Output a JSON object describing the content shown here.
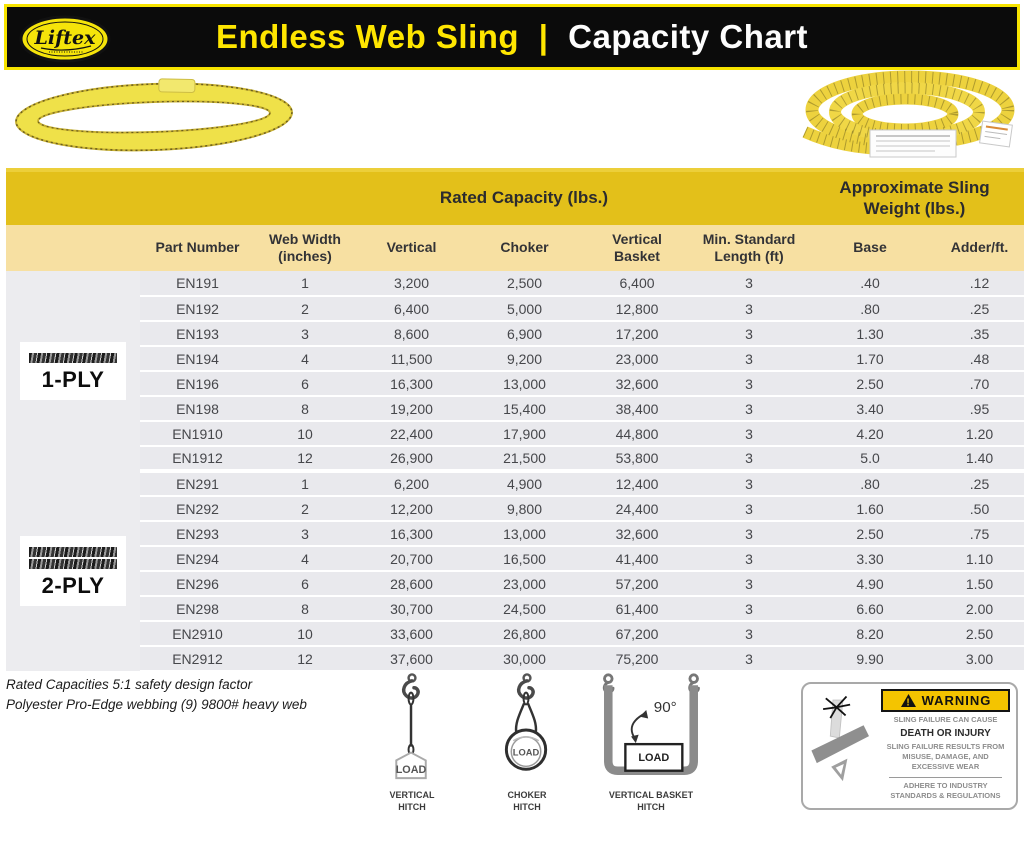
{
  "titlebar": {
    "brand": "Liftex",
    "title_product": "Endless Web Sling",
    "title_divider": "|",
    "title_page": "Capacity Chart"
  },
  "table": {
    "group_headers": {
      "rated_capacity": "Rated Capacity (lbs.)",
      "approx_sling_weight": "Approximate Sling\nWeight (lbs.)"
    },
    "columns": {
      "part_number": "Part Number",
      "web_width": "Web Width\n(inches)",
      "vertical": "Vertical",
      "choker": "Choker",
      "vertical_basket": "Vertical\nBasket",
      "min_standard_length": "Min. Standard\nLength (ft)",
      "base": "Base",
      "adder_per_ft": "Adder/ft."
    },
    "groups": [
      {
        "ply_label": "1-PLY",
        "plies": 1,
        "rows": [
          [
            "EN191",
            "1",
            "3,200",
            "2,500",
            "6,400",
            "3",
            ".40",
            ".12"
          ],
          [
            "EN192",
            "2",
            "6,400",
            "5,000",
            "12,800",
            "3",
            ".80",
            ".25"
          ],
          [
            "EN193",
            "3",
            "8,600",
            "6,900",
            "17,200",
            "3",
            "1.30",
            ".35"
          ],
          [
            "EN194",
            "4",
            "11,500",
            "9,200",
            "23,000",
            "3",
            "1.70",
            ".48"
          ],
          [
            "EN196",
            "6",
            "16,300",
            "13,000",
            "32,600",
            "3",
            "2.50",
            ".70"
          ],
          [
            "EN198",
            "8",
            "19,200",
            "15,400",
            "38,400",
            "3",
            "3.40",
            ".95"
          ],
          [
            "EN1910",
            "10",
            "22,400",
            "17,900",
            "44,800",
            "3",
            "4.20",
            "1.20"
          ],
          [
            "EN1912",
            "12",
            "26,900",
            "21,500",
            "53,800",
            "3",
            "5.0",
            "1.40"
          ]
        ]
      },
      {
        "ply_label": "2-PLY",
        "plies": 2,
        "rows": [
          [
            "EN291",
            "1",
            "6,200",
            "4,900",
            "12,400",
            "3",
            ".80",
            ".25"
          ],
          [
            "EN292",
            "2",
            "12,200",
            "9,800",
            "24,400",
            "3",
            "1.60",
            ".50"
          ],
          [
            "EN293",
            "3",
            "16,300",
            "13,000",
            "32,600",
            "3",
            "2.50",
            ".75"
          ],
          [
            "EN294",
            "4",
            "20,700",
            "16,500",
            "41,400",
            "3",
            "3.30",
            "1.10"
          ],
          [
            "EN296",
            "6",
            "28,600",
            "23,000",
            "57,200",
            "3",
            "4.90",
            "1.50"
          ],
          [
            "EN298",
            "8",
            "30,700",
            "24,500",
            "61,400",
            "3",
            "6.60",
            "2.00"
          ],
          [
            "EN2910",
            "10",
            "33,600",
            "26,800",
            "67,200",
            "3",
            "8.20",
            "2.50"
          ],
          [
            "EN2912",
            "12",
            "37,600",
            "30,000",
            "75,200",
            "3",
            "9.90",
            "3.00"
          ]
        ]
      }
    ]
  },
  "notes": {
    "line1": "Rated Capacities 5:1 safety design factor",
    "line2": "Polyester Pro-Edge webbing (9) 9800# heavy web"
  },
  "diagrams": {
    "vertical": {
      "label_line1": "VERTICAL",
      "label_line2": "HITCH",
      "load": "LOAD"
    },
    "choker": {
      "label_line1": "CHOKER",
      "label_line2": "HITCH",
      "load": "LOAD"
    },
    "basket": {
      "label_line1": "VERTICAL BASKET",
      "label_line2": "HITCH",
      "load": "LOAD",
      "angle": "90°"
    }
  },
  "warning": {
    "banner": "WARNING",
    "cause": "SLING FAILURE CAN CAUSE",
    "death": "DEATH OR INJURY",
    "results": "SLING FAILURE RESULTS FROM MISUSE, DAMAGE, AND EXCESSIVE WEAR",
    "adhere": "ADHERE TO INDUSTRY STANDARDS & REGULATIONS"
  },
  "colors": {
    "accent_yellow": "#F7E400",
    "titlebar_black": "#0B0B0B",
    "gold_band": "#E3C01A",
    "light_gold_band": "#F7E0A2",
    "row_gray": "#E9E9ED",
    "warning_yellow": "#F4C400"
  }
}
